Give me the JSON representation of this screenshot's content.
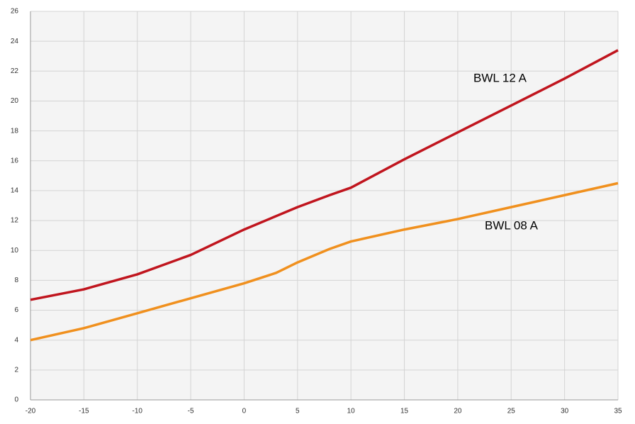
{
  "chart_data": {
    "type": "line",
    "xlim": [
      -20,
      35
    ],
    "xticks": [
      -20,
      -15,
      -10,
      -5,
      0,
      5,
      10,
      15,
      20,
      25,
      30,
      35
    ],
    "ylim": [
      0,
      26
    ],
    "yticks": [
      0,
      2,
      4,
      6,
      8,
      10,
      12,
      14,
      16,
      18,
      20,
      22,
      24,
      26
    ],
    "grid": true,
    "series": [
      {
        "name": "BWL 12 A",
        "color": "#c0151e",
        "x": [
          -20,
          -15,
          -10,
          -5,
          0,
          5,
          8,
          10,
          15,
          20,
          25,
          30,
          35
        ],
        "values": [
          6.7,
          7.4,
          8.4,
          9.7,
          11.4,
          12.9,
          13.7,
          14.2,
          16.1,
          17.9,
          19.7,
          21.5,
          23.4
        ]
      },
      {
        "name": "BWL 08 A",
        "color": "#f0901e",
        "x": [
          -20,
          -15,
          -10,
          -5,
          0,
          3,
          5,
          8,
          10,
          15,
          20,
          25,
          30,
          35
        ],
        "values": [
          4.0,
          4.8,
          5.8,
          6.8,
          7.8,
          8.5,
          9.2,
          10.1,
          10.6,
          11.4,
          12.1,
          12.9,
          13.7,
          14.5
        ]
      }
    ]
  }
}
